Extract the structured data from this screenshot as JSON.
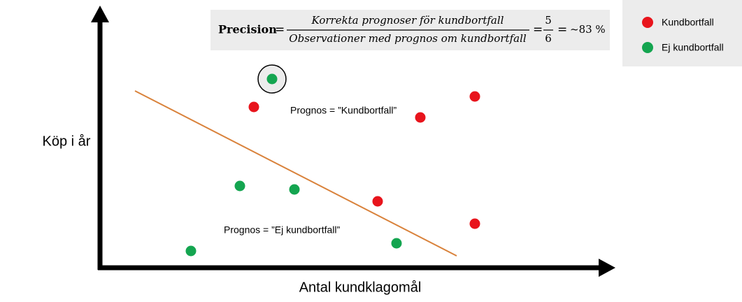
{
  "formula": {
    "label": "Precision",
    "operator": "=",
    "numerator": "Korrekta prognoser för kundbortfall",
    "denominator": "Observationer med prognos om kundbortfall",
    "count_numerator": "5",
    "count_denominator": "6",
    "result": "~83 %"
  },
  "legend": {
    "items": [
      {
        "label": "Kundbortfall",
        "color": "#e8141c"
      },
      {
        "label": "Ej kundbortfall",
        "color": "#14a550"
      }
    ]
  },
  "axes": {
    "y_label": "Köp i år",
    "x_label": "Antal kundklagomål"
  },
  "regions": {
    "upper": "Prognos = ”Kundbortfall”",
    "lower": "Prognos = ”Ej kundbortfall”"
  }
}
